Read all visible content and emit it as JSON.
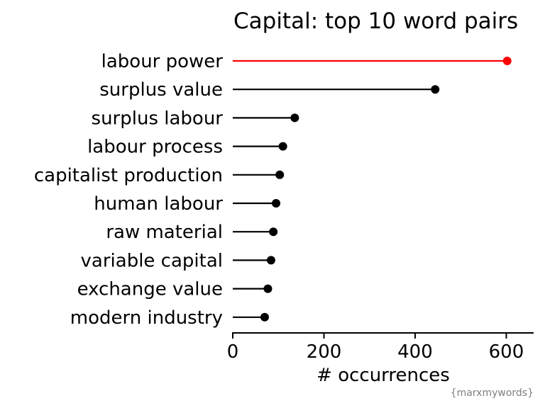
{
  "chart_data": {
    "type": "lollipop",
    "title": "Capital: top 10 word pairs",
    "xlabel": "# occurrences",
    "ylabel": "",
    "caption": "{marxmywords}",
    "xlim": [
      0,
      660
    ],
    "xticks": [
      0,
      200,
      400,
      600
    ],
    "grid": false,
    "highlight_color": "#ff0000",
    "default_color": "#000000",
    "categories": [
      "labour power",
      "surplus value",
      "surplus labour",
      "labour process",
      "capitalist production",
      "human labour",
      "raw material",
      "variable capital",
      "exchange value",
      "modern industry"
    ],
    "values": [
      602,
      444,
      136,
      110,
      103,
      95,
      89,
      84,
      77,
      70
    ],
    "highlight_index": 0
  }
}
